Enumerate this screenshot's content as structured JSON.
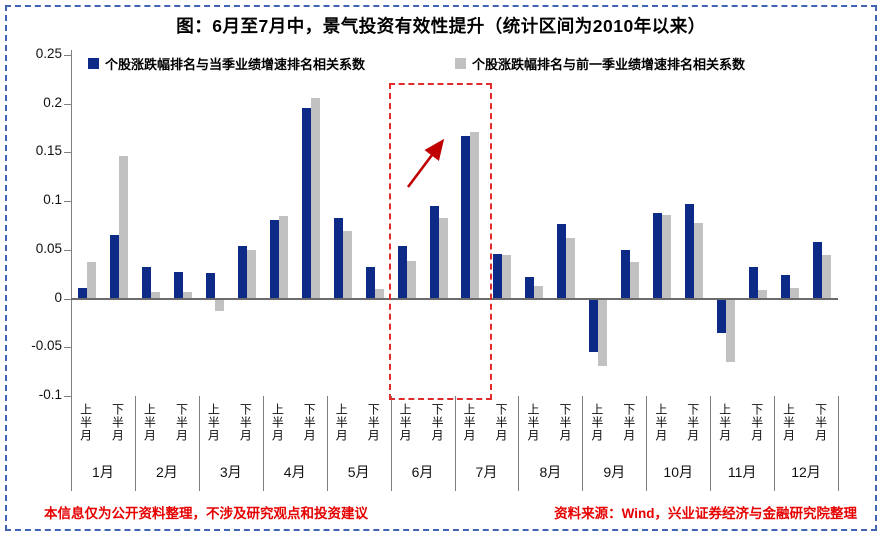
{
  "title": "图：6月至7月中，景气投资有效性提升（统计区间为2010年以来）",
  "legend": [
    {
      "label": "个股涨跌幅排名与当季业绩增速排名相关系数",
      "color": "#0D2A87"
    },
    {
      "label": "个股涨跌幅排名与前一季业绩增速排名相关系数",
      "color": "#C1C1C1"
    }
  ],
  "footer": {
    "left": "本信息仅为公开资料整理，不涉及研究观点和投资建议",
    "right": "资料来源：Wind，兴业证券经济与金融研究院整理"
  },
  "colors": {
    "series_current": "#0D2A87",
    "series_previous": "#C1C1C1",
    "annotation_red": "#C00000",
    "highlight_box_red": "#E02B2B",
    "axis_gray": "#7F7F7F",
    "frame_blue": "#4063B4",
    "footer_red": "#E60000"
  },
  "chart_data": {
    "type": "bar",
    "title": "图：6月至7月中，景气投资有效性提升（统计区间为2010年以来）",
    "months": [
      "1月",
      "2月",
      "3月",
      "4月",
      "5月",
      "6月",
      "7月",
      "8月",
      "9月",
      "10月",
      "11月",
      "12月"
    ],
    "half_labels": [
      "上半月",
      "下半月"
    ],
    "categories": [
      "1月上半月",
      "1月下半月",
      "2月上半月",
      "2月下半月",
      "3月上半月",
      "3月下半月",
      "4月上半月",
      "4月下半月",
      "5月上半月",
      "5月下半月",
      "6月上半月",
      "6月下半月",
      "7月上半月",
      "7月下半月",
      "8月上半月",
      "8月下半月",
      "9月上半月",
      "9月下半月",
      "10月上半月",
      "10月下半月",
      "11月上半月",
      "11月下半月",
      "12月上半月",
      "12月下半月"
    ],
    "series": [
      {
        "name": "个股涨跌幅排名与当季业绩增速排名相关系数",
        "color": "#0D2A87",
        "values": [
          0.011,
          0.065,
          0.032,
          0.027,
          0.026,
          0.054,
          0.081,
          0.196,
          0.083,
          0.032,
          0.054,
          0.095,
          0.167,
          0.046,
          0.022,
          0.077,
          -0.055,
          0.05,
          0.088,
          0.097,
          -0.035,
          0.032,
          0.024,
          0.058
        ]
      },
      {
        "name": "个股涨跌幅排名与前一季业绩增速排名相关系数",
        "color": "#C1C1C1",
        "values": [
          0.037,
          0.146,
          0.007,
          0.007,
          -0.013,
          0.05,
          0.085,
          0.206,
          0.069,
          0.01,
          0.039,
          0.083,
          0.171,
          0.045,
          0.013,
          0.062,
          -0.069,
          0.037,
          0.086,
          0.078,
          -0.065,
          0.009,
          0.011,
          0.045
        ]
      }
    ],
    "ylim": [
      -0.1,
      0.25
    ],
    "y_ticks": [
      0.25,
      0.2,
      0.15,
      0.1,
      0.05,
      0,
      -0.05,
      -0.1
    ],
    "y_tick_labels": [
      "0.25",
      "0.2",
      "0.15",
      "0.1",
      "0.05",
      "0",
      "-0.05",
      "-0.1"
    ],
    "grid": false,
    "legend_position": "top",
    "annotations": {
      "highlight_box_categories": [
        "6月上半月",
        "6月下半月",
        "7月上半月"
      ],
      "highlight_box_style": "red dashed rectangle",
      "arrow": "red up-right arrow over 6月下半月 pointing toward 7月上半月 bars"
    }
  }
}
